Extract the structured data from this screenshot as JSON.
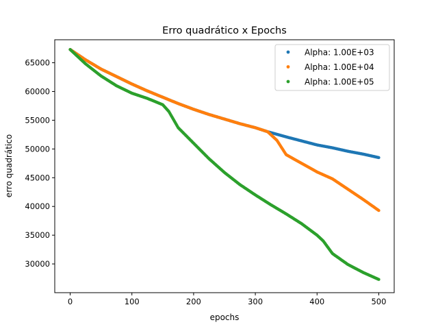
{
  "chart_data": {
    "type": "scatter",
    "title": "Erro quadrático x Epochs",
    "xlabel": "epochs",
    "ylabel": "erro quadrático",
    "xlim": [
      -25,
      525
    ],
    "ylim": [
      25000,
      69000
    ],
    "xticks": [
      0,
      100,
      200,
      300,
      400,
      500
    ],
    "yticks": [
      30000,
      35000,
      40000,
      45000,
      50000,
      55000,
      60000,
      65000
    ],
    "grid": false,
    "legend_position": "top-right",
    "series": [
      {
        "name": "Alpha: 1.00E+03",
        "color": "#1f77b4",
        "x": [
          0,
          25,
          50,
          75,
          100,
          125,
          150,
          175,
          200,
          225,
          250,
          275,
          300,
          320,
          350,
          375,
          400,
          425,
          450,
          475,
          500
        ],
        "y": [
          67300,
          65500,
          63900,
          62600,
          61300,
          60100,
          59000,
          57900,
          56900,
          56000,
          55200,
          54400,
          53700,
          53000,
          52100,
          51400,
          50700,
          50200,
          49600,
          49100,
          48500
        ]
      },
      {
        "name": "Alpha: 1.00E+04",
        "color": "#ff7f0e",
        "x": [
          0,
          25,
          50,
          75,
          100,
          125,
          150,
          175,
          200,
          225,
          250,
          275,
          300,
          320,
          335,
          350,
          375,
          400,
          425,
          450,
          475,
          500
        ],
        "y": [
          67300,
          65500,
          63900,
          62600,
          61300,
          60100,
          59000,
          57900,
          56900,
          56000,
          55200,
          54400,
          53700,
          53000,
          51500,
          49000,
          47500,
          46000,
          44800,
          43000,
          41200,
          39300
        ]
      },
      {
        "name": "Alpha: 1.00E+05",
        "color": "#2ca02c",
        "x": [
          0,
          25,
          50,
          75,
          100,
          125,
          150,
          160,
          175,
          200,
          225,
          250,
          275,
          300,
          325,
          350,
          375,
          400,
          410,
          425,
          450,
          475,
          500
        ],
        "y": [
          67300,
          64800,
          62700,
          61000,
          59700,
          58800,
          57700,
          56500,
          53700,
          51000,
          48300,
          45900,
          43800,
          42000,
          40300,
          38700,
          37000,
          35000,
          34000,
          31800,
          29900,
          28500,
          27300
        ]
      }
    ]
  }
}
